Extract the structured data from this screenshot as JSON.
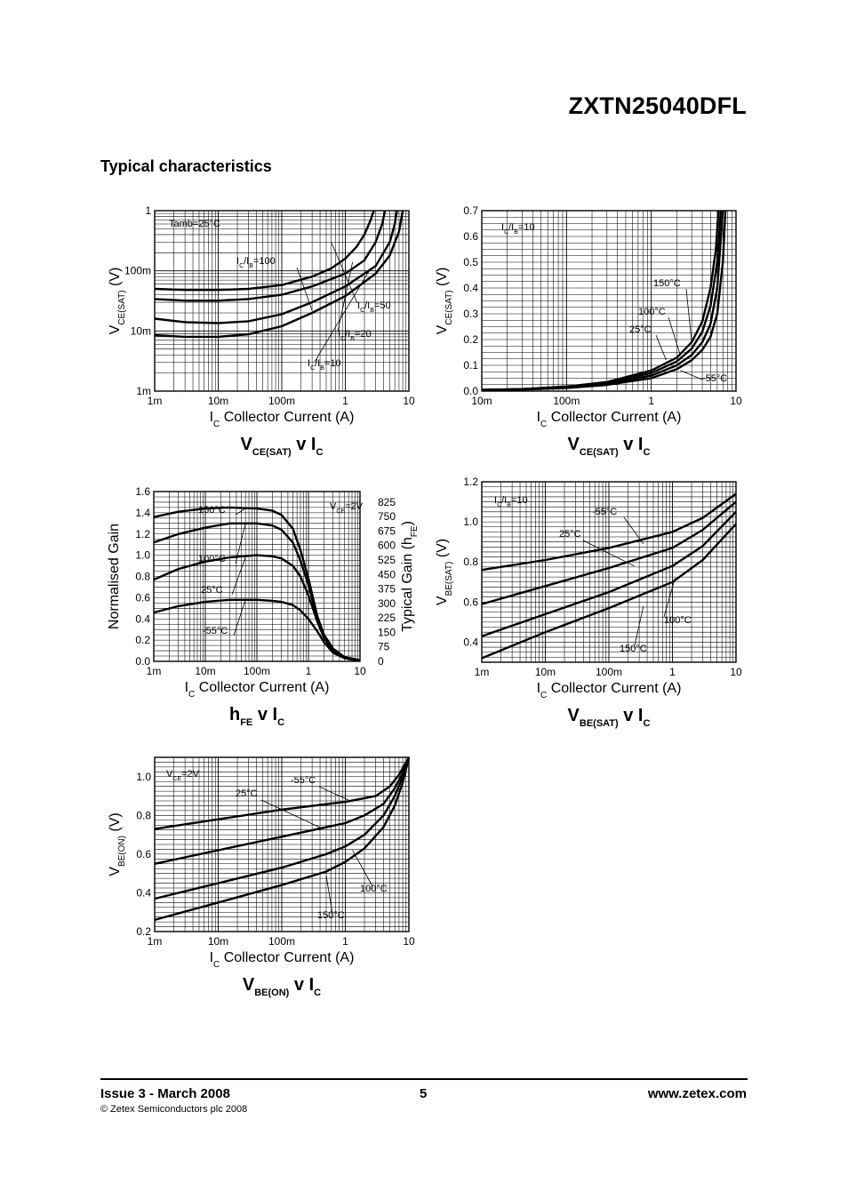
{
  "header": {
    "part_number": "ZXTN25040DFL",
    "section_title": "Typical characteristics"
  },
  "footer": {
    "issue": "Issue 3 - March 2008",
    "copyright": "© Zetex Semiconductors plc 2008",
    "page": "5",
    "website": "www.zetex.com"
  },
  "chart_data": [
    {
      "id": "vcesat_ratio",
      "type": "line",
      "title": {
        "main": "V",
        "sub": "CE(SAT)",
        "rest": " v I",
        "sub2": "C"
      },
      "xlabel": {
        "sym": "I",
        "sub": "C",
        "text": "Collector Current (A)"
      },
      "ylabel": {
        "sym": "V",
        "sub": "CE(SAT)",
        "unit": "(V)"
      },
      "xscale": "log",
      "yscale": "log",
      "xlim": [
        0.001,
        10
      ],
      "ylim": [
        0.001,
        1
      ],
      "xticks": [
        {
          "v": 0.001,
          "label": "1m"
        },
        {
          "v": 0.01,
          "label": "10m"
        },
        {
          "v": 0.1,
          "label": "100m"
        },
        {
          "v": 1,
          "label": "1"
        },
        {
          "v": 10,
          "label": "10"
        }
      ],
      "yticks": [
        {
          "v": 0.001,
          "label": "1m"
        },
        {
          "v": 0.01,
          "label": "10m"
        },
        {
          "v": 0.1,
          "label": "100m"
        },
        {
          "v": 1,
          "label": "1"
        }
      ],
      "condition": "Tamb=25°C",
      "series": [
        {
          "name": "IC/IB=100",
          "x": [
            0.001,
            0.003,
            0.01,
            0.03,
            0.1,
            0.3,
            0.6,
            1,
            1.5,
            2,
            2.5,
            2.8
          ],
          "y": [
            0.05,
            0.048,
            0.048,
            0.05,
            0.058,
            0.08,
            0.11,
            0.16,
            0.25,
            0.4,
            0.7,
            1
          ]
        },
        {
          "name": "IC/IB=50",
          "x": [
            0.001,
            0.003,
            0.01,
            0.03,
            0.1,
            0.3,
            1,
            2,
            3,
            3.8,
            4.2
          ],
          "y": [
            0.034,
            0.032,
            0.032,
            0.034,
            0.04,
            0.055,
            0.09,
            0.15,
            0.3,
            0.6,
            1
          ]
        },
        {
          "name": "IC/IB=20",
          "x": [
            0.001,
            0.003,
            0.01,
            0.03,
            0.1,
            0.3,
            1,
            3,
            5,
            6,
            6.5
          ],
          "y": [
            0.016,
            0.014,
            0.0135,
            0.0145,
            0.019,
            0.03,
            0.055,
            0.12,
            0.3,
            0.6,
            1
          ]
        },
        {
          "name": "IC/IB=10",
          "x": [
            0.001,
            0.003,
            0.01,
            0.03,
            0.1,
            0.3,
            1,
            3,
            5,
            7,
            8
          ],
          "y": [
            0.0085,
            0.008,
            0.008,
            0.0088,
            0.012,
            0.02,
            0.038,
            0.09,
            0.18,
            0.45,
            1
          ]
        }
      ],
      "annotations": [
        {
          "sym": "I",
          "s1": "C",
          "mid": "/I",
          "s2": "B",
          "val": "=100"
        },
        {
          "sym": "I",
          "s1": "C",
          "mid": "/I",
          "s2": "B",
          "val": "=50"
        },
        {
          "sym": "I",
          "s1": "C",
          "mid": "/I",
          "s2": "B",
          "val": "=20"
        },
        {
          "sym": "I",
          "s1": "C",
          "mid": "/I",
          "s2": "B",
          "val": "=10"
        }
      ]
    },
    {
      "id": "vcesat_temp",
      "type": "line",
      "title": {
        "main": "V",
        "sub": "CE(SAT)",
        "rest": " v I",
        "sub2": "C"
      },
      "xlabel": {
        "sym": "I",
        "sub": "C",
        "text": "Collector Current (A)"
      },
      "ylabel": {
        "sym": "V",
        "sub": "CE(SAT)",
        "unit": "(V)"
      },
      "xscale": "log",
      "yscale": "linear",
      "xlim": [
        0.01,
        10
      ],
      "ylim": [
        0,
        0.7
      ],
      "xticks": [
        {
          "v": 0.01,
          "label": "10m"
        },
        {
          "v": 0.1,
          "label": "100m"
        },
        {
          "v": 1,
          "label": "1"
        },
        {
          "v": 10,
          "label": "10"
        }
      ],
      "yticks": [
        {
          "v": 0,
          "label": "0.0"
        },
        {
          "v": 0.1,
          "label": "0.1"
        },
        {
          "v": 0.2,
          "label": "0.2"
        },
        {
          "v": 0.3,
          "label": "0.3"
        },
        {
          "v": 0.4,
          "label": "0.4"
        },
        {
          "v": 0.5,
          "label": "0.5"
        },
        {
          "v": 0.6,
          "label": "0.6"
        },
        {
          "v": 0.7,
          "label": "0.7"
        }
      ],
      "condition": {
        "sym": "I",
        "s1": "C",
        "mid": "/I",
        "s2": "B",
        "val": "=10"
      },
      "series": [
        {
          "name": "150°C",
          "x": [
            0.01,
            0.03,
            0.1,
            0.3,
            1,
            2,
            3,
            4,
            5,
            5.8,
            6.2
          ],
          "y": [
            0.005,
            0.008,
            0.018,
            0.035,
            0.08,
            0.13,
            0.19,
            0.27,
            0.4,
            0.55,
            0.7
          ]
        },
        {
          "name": "100°C",
          "x": [
            0.01,
            0.03,
            0.1,
            0.3,
            1,
            2,
            3,
            4,
            5,
            6,
            6.6
          ],
          "y": [
            0.005,
            0.008,
            0.016,
            0.032,
            0.07,
            0.115,
            0.165,
            0.23,
            0.33,
            0.5,
            0.7
          ]
        },
        {
          "name": "25°C",
          "x": [
            0.01,
            0.03,
            0.1,
            0.3,
            1,
            2,
            3,
            4,
            5,
            6,
            7
          ],
          "y": [
            0.005,
            0.007,
            0.014,
            0.028,
            0.06,
            0.1,
            0.14,
            0.19,
            0.26,
            0.4,
            0.7
          ]
        },
        {
          "name": "-55°C",
          "x": [
            0.01,
            0.03,
            0.1,
            0.3,
            1,
            2,
            3,
            4,
            5,
            6,
            7,
            7.5
          ],
          "y": [
            0.004,
            0.006,
            0.012,
            0.024,
            0.05,
            0.085,
            0.12,
            0.16,
            0.21,
            0.3,
            0.5,
            0.7
          ]
        }
      ]
    },
    {
      "id": "hfe",
      "type": "line",
      "title": {
        "main": "h",
        "sub": "FE",
        "rest": " v I",
        "sub2": "C"
      },
      "xlabel": {
        "sym": "I",
        "sub": "C",
        "text": "Collector Current (A)"
      },
      "ylabel": "Normalised Gain",
      "y2label": {
        "pre": "Typical Gain (h",
        "sub": "FE",
        "post": ")"
      },
      "xscale": "log",
      "yscale": "linear",
      "xlim": [
        0.001,
        10
      ],
      "ylim": [
        0,
        1.6
      ],
      "xticks": [
        {
          "v": 0.001,
          "label": "1m"
        },
        {
          "v": 0.01,
          "label": "10m"
        },
        {
          "v": 0.1,
          "label": "100m"
        },
        {
          "v": 1,
          "label": "1"
        },
        {
          "v": 10,
          "label": "10"
        }
      ],
      "yticks": [
        {
          "v": 0,
          "label": "0.0"
        },
        {
          "v": 0.2,
          "label": "0.2"
        },
        {
          "v": 0.4,
          "label": "0.4"
        },
        {
          "v": 0.6,
          "label": "0.6"
        },
        {
          "v": 0.8,
          "label": "0.8"
        },
        {
          "v": 1.0,
          "label": "1.0"
        },
        {
          "v": 1.2,
          "label": "1.2"
        },
        {
          "v": 1.4,
          "label": "1.4"
        },
        {
          "v": 1.6,
          "label": "1.6"
        }
      ],
      "y2ticks": [
        "0",
        "75",
        "150",
        "225",
        "300",
        "375",
        "450",
        "525",
        "600",
        "675",
        "750",
        "825"
      ],
      "condition": {
        "sym": "V",
        "s1": "CE",
        "val": "=2V"
      },
      "series": [
        {
          "name": "150°C",
          "x": [
            0.001,
            0.003,
            0.01,
            0.03,
            0.1,
            0.2,
            0.3,
            0.5,
            0.7,
            1,
            1.5,
            2,
            3,
            5,
            10
          ],
          "y": [
            1.36,
            1.41,
            1.44,
            1.45,
            1.44,
            1.42,
            1.38,
            1.25,
            1.05,
            0.78,
            0.42,
            0.25,
            0.12,
            0.04,
            0.01
          ]
        },
        {
          "name": "100°C",
          "x": [
            0.001,
            0.003,
            0.01,
            0.03,
            0.1,
            0.2,
            0.3,
            0.5,
            0.7,
            1,
            1.5,
            2,
            3,
            5,
            10
          ],
          "y": [
            1.12,
            1.2,
            1.26,
            1.3,
            1.3,
            1.28,
            1.24,
            1.12,
            0.95,
            0.72,
            0.4,
            0.24,
            0.11,
            0.04,
            0.01
          ]
        },
        {
          "name": "25°C",
          "x": [
            0.001,
            0.003,
            0.01,
            0.03,
            0.1,
            0.2,
            0.3,
            0.5,
            0.7,
            1,
            1.5,
            2,
            3,
            5,
            10
          ],
          "y": [
            0.77,
            0.87,
            0.94,
            0.98,
            1.0,
            0.99,
            0.97,
            0.9,
            0.8,
            0.62,
            0.37,
            0.22,
            0.1,
            0.03,
            0.01
          ]
        },
        {
          "name": "-55°C",
          "x": [
            0.001,
            0.003,
            0.01,
            0.03,
            0.1,
            0.2,
            0.3,
            0.5,
            0.7,
            1,
            1.5,
            2,
            3,
            5,
            10
          ],
          "y": [
            0.46,
            0.52,
            0.56,
            0.58,
            0.58,
            0.57,
            0.56,
            0.53,
            0.48,
            0.4,
            0.28,
            0.18,
            0.08,
            0.03,
            0.005
          ]
        }
      ]
    },
    {
      "id": "vbesat",
      "type": "line",
      "title": {
        "main": "V",
        "sub": "BE(SAT)",
        "rest": " v I",
        "sub2": "C"
      },
      "xlabel": {
        "sym": "I",
        "sub": "C",
        "text": "Collector Current (A)"
      },
      "ylabel": {
        "sym": "V",
        "sub": "BE(SAT)",
        "unit": "(V)"
      },
      "xscale": "log",
      "yscale": "linear",
      "xlim": [
        0.001,
        10
      ],
      "ylim": [
        0.3,
        1.2
      ],
      "xticks": [
        {
          "v": 0.001,
          "label": "1m"
        },
        {
          "v": 0.01,
          "label": "10m"
        },
        {
          "v": 0.1,
          "label": "100m"
        },
        {
          "v": 1,
          "label": "1"
        },
        {
          "v": 10,
          "label": "10"
        }
      ],
      "yticks": [
        {
          "v": 0.4,
          "label": "0.4"
        },
        {
          "v": 0.6,
          "label": "0.6"
        },
        {
          "v": 0.8,
          "label": "0.8"
        },
        {
          "v": 1.0,
          "label": "1.0"
        },
        {
          "v": 1.2,
          "label": "1.2"
        }
      ],
      "condition": {
        "sym": "I",
        "s1": "C",
        "mid": "/I",
        "s2": "B",
        "val": "=10"
      },
      "series": [
        {
          "name": "-55°C",
          "x": [
            0.001,
            0.01,
            0.1,
            1,
            3,
            10
          ],
          "y": [
            0.76,
            0.81,
            0.87,
            0.95,
            1.02,
            1.14
          ]
        },
        {
          "name": "25°C",
          "x": [
            0.001,
            0.01,
            0.1,
            1,
            3,
            10
          ],
          "y": [
            0.59,
            0.68,
            0.77,
            0.87,
            0.96,
            1.1
          ]
        },
        {
          "name": "100°C",
          "x": [
            0.001,
            0.01,
            0.1,
            1,
            3,
            10
          ],
          "y": [
            0.43,
            0.54,
            0.65,
            0.78,
            0.88,
            1.05
          ]
        },
        {
          "name": "150°C",
          "x": [
            0.001,
            0.01,
            0.1,
            1,
            3,
            10
          ],
          "y": [
            0.32,
            0.45,
            0.57,
            0.7,
            0.81,
            0.99
          ]
        }
      ]
    },
    {
      "id": "vbeon",
      "type": "line",
      "title": {
        "main": "V",
        "sub": "BE(ON)",
        "rest": " v I",
        "sub2": "C"
      },
      "xlabel": {
        "sym": "I",
        "sub": "C",
        "text": "Collector Current (A)"
      },
      "ylabel": {
        "sym": "V",
        "sub": "BE(ON)",
        "unit": "(V)"
      },
      "xscale": "log",
      "yscale": "linear",
      "xlim": [
        0.001,
        10
      ],
      "ylim": [
        0.2,
        1.1
      ],
      "xticks": [
        {
          "v": 0.001,
          "label": "1m"
        },
        {
          "v": 0.01,
          "label": "10m"
        },
        {
          "v": 0.1,
          "label": "100m"
        },
        {
          "v": 1,
          "label": "1"
        },
        {
          "v": 10,
          "label": "10"
        }
      ],
      "yticks": [
        {
          "v": 0.2,
          "label": "0.2"
        },
        {
          "v": 0.4,
          "label": "0.4"
        },
        {
          "v": 0.6,
          "label": "0.6"
        },
        {
          "v": 0.8,
          "label": "0.8"
        },
        {
          "v": 1.0,
          "label": "1.0"
        }
      ],
      "condition": {
        "sym": "V",
        "s1": "CE",
        "val": "=2V"
      },
      "series": [
        {
          "name": "-55°C",
          "x": [
            0.001,
            0.01,
            0.1,
            1,
            3,
            5,
            7,
            10
          ],
          "y": [
            0.73,
            0.78,
            0.83,
            0.87,
            0.9,
            0.95,
            1.01,
            1.1
          ]
        },
        {
          "name": "25°C",
          "x": [
            0.001,
            0.01,
            0.1,
            1,
            2,
            4,
            6,
            8,
            10
          ],
          "y": [
            0.55,
            0.62,
            0.69,
            0.76,
            0.8,
            0.86,
            0.94,
            1.02,
            1.1
          ]
        },
        {
          "name": "100°C",
          "x": [
            0.001,
            0.01,
            0.1,
            0.5,
            1,
            2,
            4,
            6,
            8,
            10
          ],
          "y": [
            0.37,
            0.45,
            0.53,
            0.6,
            0.64,
            0.7,
            0.8,
            0.9,
            1.0,
            1.1
          ]
        },
        {
          "name": "150°C",
          "x": [
            0.001,
            0.01,
            0.1,
            0.5,
            1,
            2,
            4,
            6,
            8,
            10
          ],
          "y": [
            0.26,
            0.35,
            0.44,
            0.51,
            0.56,
            0.63,
            0.74,
            0.85,
            0.97,
            1.1
          ]
        }
      ]
    }
  ]
}
